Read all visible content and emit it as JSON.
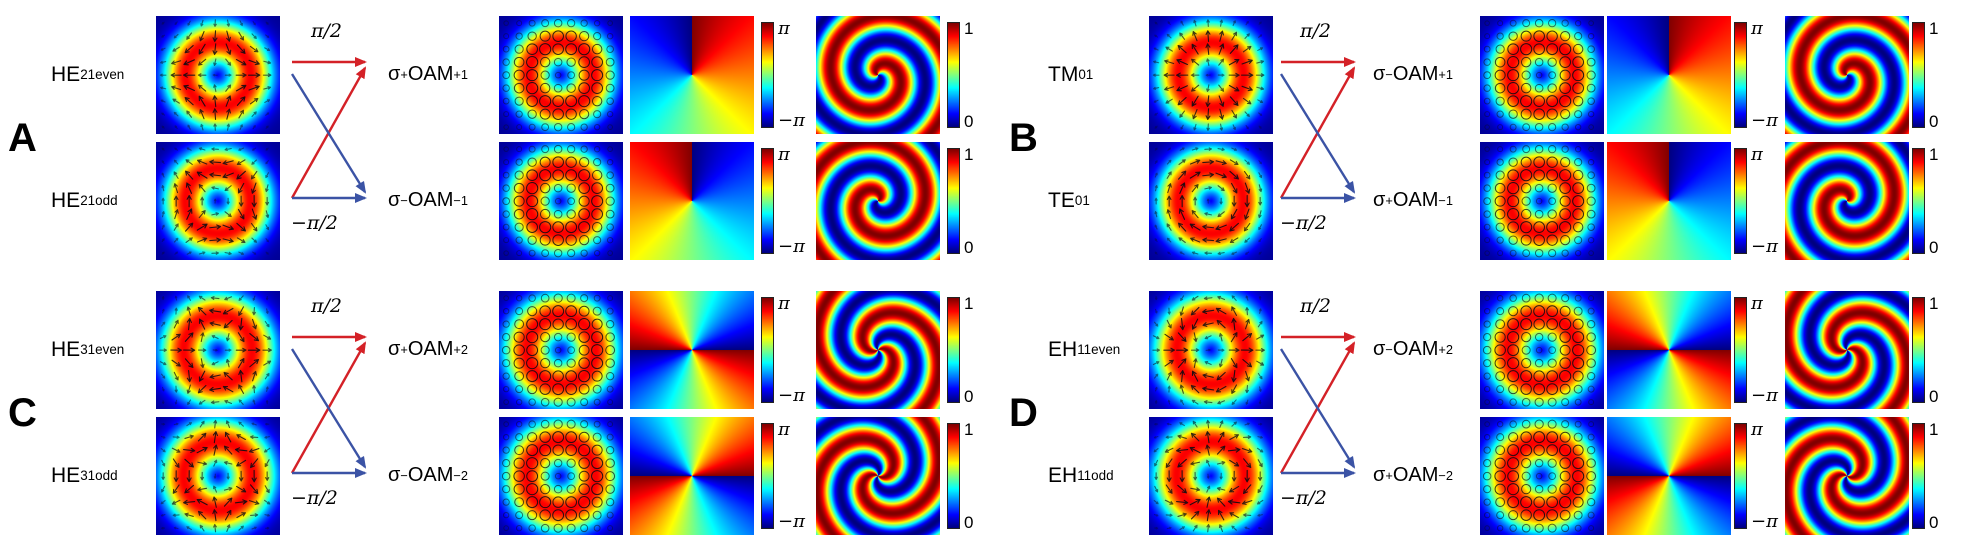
{
  "colorbar": {
    "pi": "π",
    "neg_pi": "−π",
    "one": "1",
    "zero": "0"
  },
  "colors": {
    "red_arrow": "#d42127",
    "blue_arrow": "#3b53a5",
    "background": "#ffffff"
  },
  "panels": [
    {
      "letter": "A",
      "modes": [
        {
          "base": "HE",
          "sub": "21",
          "sup": "even"
        },
        {
          "base": "HE",
          "sub": "21",
          "sup": "odd"
        }
      ],
      "phase_labels": {
        "top": "π/2",
        "bottom": "−π/2"
      },
      "outputs": [
        {
          "sigma": "σ",
          "sign": "+",
          "body": "OAM",
          "sub": "+1"
        },
        {
          "sigma": "σ",
          "sign": "−",
          "body": "OAM",
          "sub": "−1"
        }
      ],
      "render": {
        "vectors": [
          "he21even",
          "he21odd"
        ],
        "l": [
          1,
          -1
        ],
        "ring_radius": 0.55,
        "ring_width": 0.3
      }
    },
    {
      "letter": "B",
      "modes": [
        {
          "base": "TM",
          "sub": "01",
          "sup": ""
        },
        {
          "base": "TE",
          "sub": "01",
          "sup": ""
        }
      ],
      "phase_labels": {
        "top": "π/2",
        "bottom": "−π/2"
      },
      "outputs": [
        {
          "sigma": "σ",
          "sign": "−",
          "body": "OAM",
          "sub": "+1"
        },
        {
          "sigma": "σ",
          "sign": "+",
          "body": "OAM",
          "sub": "−1"
        }
      ],
      "render": {
        "vectors": [
          "tm01",
          "te01"
        ],
        "l": [
          1,
          -1
        ],
        "ring_radius": 0.55,
        "ring_width": 0.3
      }
    },
    {
      "letter": "C",
      "modes": [
        {
          "base": "HE",
          "sub": "31",
          "sup": "even"
        },
        {
          "base": "HE",
          "sub": "31",
          "sup": "odd"
        }
      ],
      "phase_labels": {
        "top": "π/2",
        "bottom": "−π/2"
      },
      "outputs": [
        {
          "sigma": "σ",
          "sign": "+",
          "body": "OAM",
          "sub": "+2"
        },
        {
          "sigma": "σ",
          "sign": "−",
          "body": "OAM",
          "sub": "−2"
        }
      ],
      "render": {
        "vectors": [
          "he31even",
          "he31odd"
        ],
        "l": [
          2,
          -2
        ],
        "ring_radius": 0.58,
        "ring_width": 0.32
      }
    },
    {
      "letter": "D",
      "modes": [
        {
          "base": "EH",
          "sub": "11",
          "sup": "even"
        },
        {
          "base": "EH",
          "sub": "11",
          "sup": "odd"
        }
      ],
      "phase_labels": {
        "top": "π/2",
        "bottom": "−π/2"
      },
      "outputs": [
        {
          "sigma": "σ",
          "sign": "−",
          "body": "OAM",
          "sub": "+2"
        },
        {
          "sigma": "σ",
          "sign": "+",
          "body": "OAM",
          "sub": "−2"
        }
      ],
      "render": {
        "vectors": [
          "eh11even",
          "eh11odd"
        ],
        "l": [
          2,
          -2
        ],
        "ring_radius": 0.58,
        "ring_width": 0.32
      }
    }
  ]
}
